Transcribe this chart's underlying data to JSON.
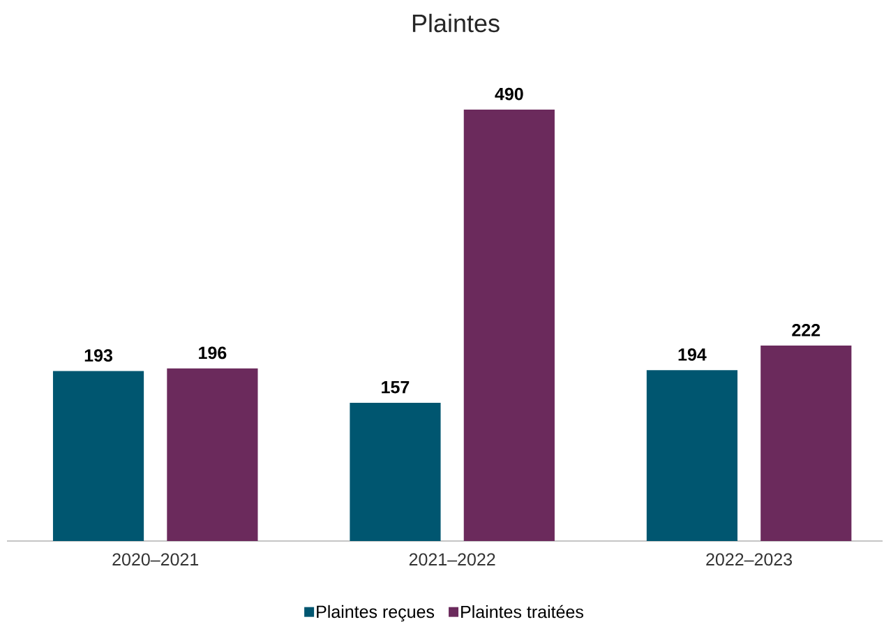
{
  "chart_data": {
    "type": "bar",
    "title": "Plaintes",
    "categories": [
      "2020–2021",
      "2021–2022",
      "2022–2023"
    ],
    "series": [
      {
        "name": "Plaintes reçues",
        "color": "#005670",
        "values": [
          193,
          157,
          194
        ]
      },
      {
        "name": "Plaintes traitées",
        "color": "#6b2a5c",
        "values": [
          196,
          490,
          222
        ]
      }
    ],
    "data_labels": true,
    "legend": "bottom"
  }
}
